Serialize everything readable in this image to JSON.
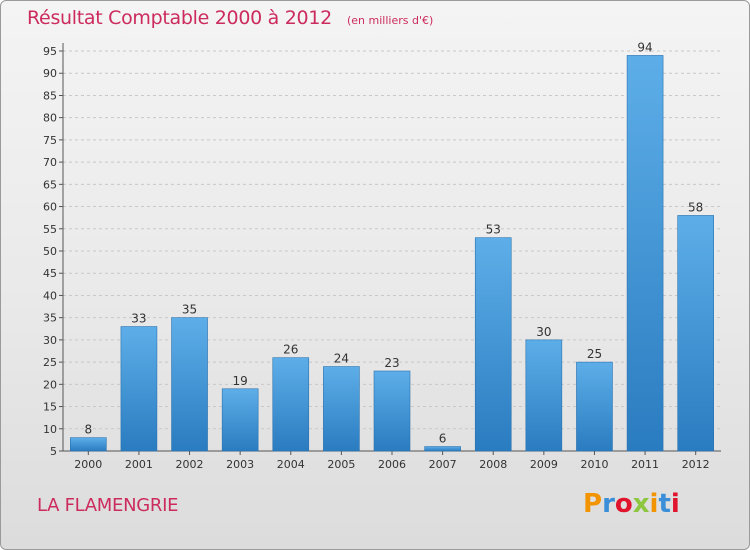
{
  "header": {
    "title": "Résultat Comptable 2000 à 2012",
    "subtitle": "(en milliers d'€)"
  },
  "footer": {
    "commune": "LA FLAMENGRIE",
    "brand": "Proxiti",
    "brand_colors": [
      "#f29400",
      "#3a8fd8",
      "#e0142d",
      "#8dc63f",
      "#f29400",
      "#3a8fd8",
      "#e0142d"
    ]
  },
  "colors": {
    "accent": "#cc2b5e",
    "bar_top": "#5daee8",
    "bar_bottom": "#2a7cc0",
    "grid": "#c8c8c8"
  },
  "chart_data": {
    "type": "bar",
    "categories": [
      "2000",
      "2001",
      "2002",
      "2003",
      "2004",
      "2005",
      "2006",
      "2007",
      "2008",
      "2009",
      "2010",
      "2011",
      "2012"
    ],
    "values": [
      8,
      33,
      35,
      19,
      26,
      24,
      23,
      6,
      53,
      30,
      25,
      94,
      58
    ],
    "ylim": [
      5,
      95
    ],
    "yticks": [
      5,
      10,
      15,
      20,
      25,
      30,
      35,
      40,
      45,
      50,
      55,
      60,
      65,
      70,
      75,
      80,
      85,
      90,
      95
    ],
    "grid": true,
    "data_labels": true
  }
}
